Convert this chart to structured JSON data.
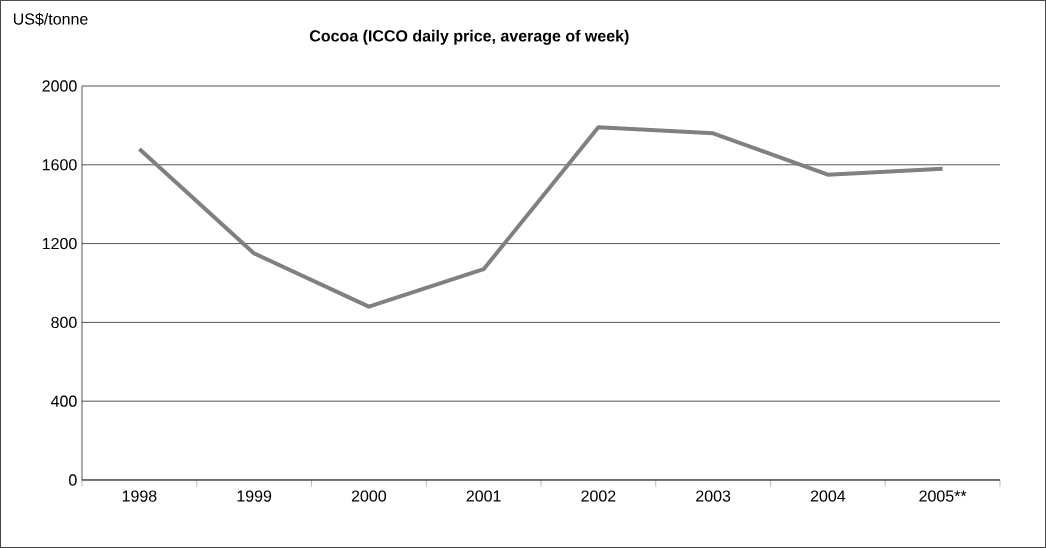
{
  "chart_data": {
    "type": "line",
    "title": "Cocoa (ICCO daily price, average of week)",
    "ylabel": "US$/tonne",
    "categories": [
      "1998",
      "1999",
      "2000",
      "2001",
      "2002",
      "2003",
      "2004",
      "2005**"
    ],
    "series": [
      {
        "color": "#808080",
        "values": [
          1680,
          1150,
          880,
          1070,
          1790,
          1760,
          1550,
          1580
        ]
      }
    ],
    "ylim": [
      0,
      2000
    ],
    "yticks": [
      0,
      400,
      800,
      1200,
      1600,
      2000
    ],
    "grid": "y",
    "marker": "none",
    "line_style": "solid"
  }
}
